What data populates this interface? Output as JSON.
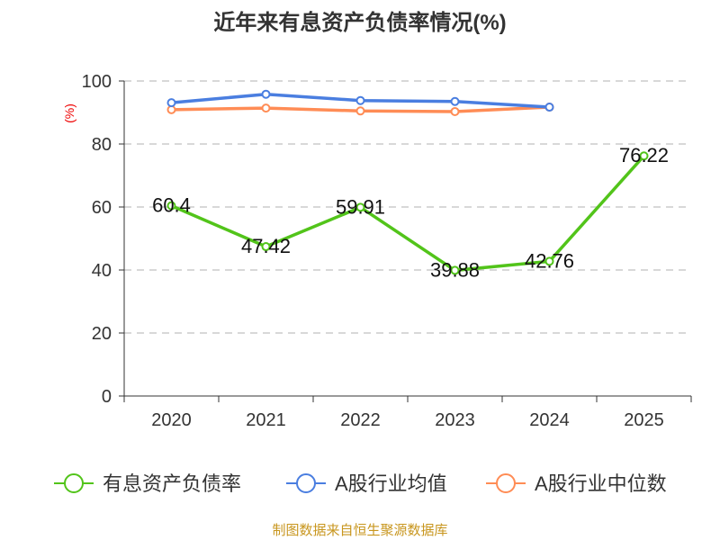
{
  "chart_data": {
    "type": "line",
    "title": "近年来有息资产负债率情况(%)",
    "ylabel": "(%)",
    "xlabel": "",
    "ylim": [
      0,
      100
    ],
    "yticks": [
      0,
      20,
      40,
      60,
      80,
      100
    ],
    "categories": [
      "2020",
      "2021",
      "2022",
      "2023",
      "2024",
      "2025"
    ],
    "grid": true,
    "legend_position": "bottom",
    "series": [
      {
        "name": "有息资产负债率",
        "color": "#52c41a",
        "values": [
          60.4,
          47.42,
          59.91,
          39.88,
          42.76,
          76.22
        ],
        "labels": [
          "60.4",
          "47.42",
          "59.91",
          "39.88",
          "42.76",
          "76.22"
        ]
      },
      {
        "name": "A股行业均值",
        "color": "#4a7ee0",
        "values": [
          93.1,
          95.8,
          93.8,
          93.5,
          91.7,
          null
        ]
      },
      {
        "name": "A股行业中位数",
        "color": "#ff8c55",
        "values": [
          90.9,
          91.4,
          90.5,
          90.3,
          91.7,
          null
        ]
      }
    ],
    "source": "制图数据来自恒生聚源数据库"
  }
}
